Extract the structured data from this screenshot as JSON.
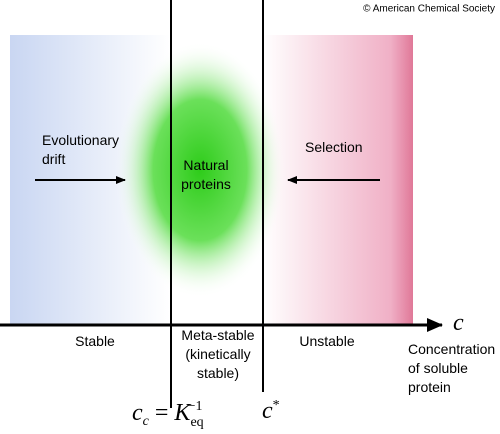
{
  "copyright": "© American Chemical Society",
  "regions": {
    "drift": {
      "lines": [
        "Evolutionary",
        "drift"
      ]
    },
    "natural": {
      "lines": [
        "Natural",
        "proteins"
      ]
    },
    "selection": {
      "lines": [
        "Selection"
      ]
    }
  },
  "axis": {
    "symbol": "c",
    "label_lines": [
      "Concentration",
      "of soluble",
      "protein"
    ],
    "zones": [
      {
        "lines": [
          "Stable"
        ]
      },
      {
        "lines": [
          "Meta-stable",
          "(kinetically",
          "stable)"
        ]
      },
      {
        "lines": [
          "Unstable"
        ]
      }
    ]
  },
  "markers": {
    "cc": {
      "base": "c",
      "sub": "c",
      "rel": "=",
      "k": "K",
      "k_sub": "eq",
      "k_sup": "−1"
    },
    "cstar": {
      "base": "c",
      "sup": "*"
    }
  }
}
